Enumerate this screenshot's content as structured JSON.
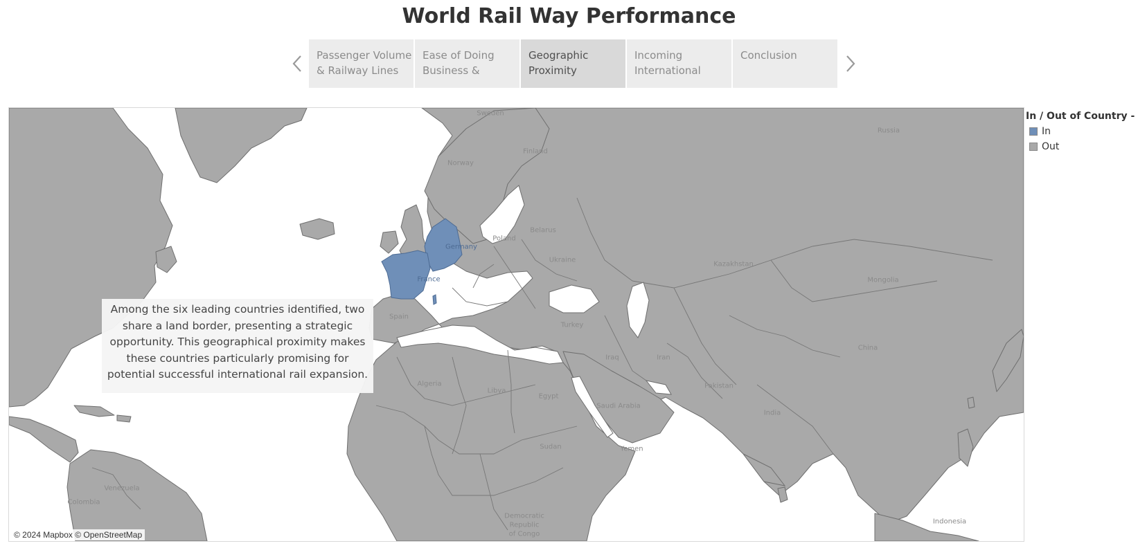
{
  "title": "World Rail Way Performance",
  "story": {
    "prev_icon": "chevron-left-icon",
    "next_icon": "chevron-right-icon",
    "points": [
      {
        "line1": "Passenger Volume",
        "line2": "& Railway Lines"
      },
      {
        "line1": "Ease of Doing",
        "line2": "Business &"
      },
      {
        "line1": "Geographic",
        "line2": "Proximity"
      },
      {
        "line1": "Incoming",
        "line2": "International"
      },
      {
        "line1": "Conclusion",
        "line2": ""
      }
    ],
    "active_index": 2
  },
  "map": {
    "colors": {
      "in": "#6f8fb8",
      "out": "#a9a9a9",
      "water": "#ffffff"
    },
    "labels": {
      "sweden": "Sweden",
      "finland": "Finland",
      "norway": "Norway",
      "russia": "Russia",
      "poland": "Poland",
      "belarus": "Belarus",
      "ukraine": "Ukraine",
      "germany": "Germany",
      "france": "France",
      "spain": "Spain",
      "turkey": "Turkey",
      "kazakhstan": "Kazakhstan",
      "mongolia": "Mongolia",
      "china": "China",
      "iran": "Iran",
      "iraq": "Iraq",
      "pakistan": "Pakistan",
      "india": "India",
      "saudi_arabia": "Saudi Arabia",
      "egypt": "Egypt",
      "libya": "Libya",
      "algeria": "Algeria",
      "sudan": "Sudan",
      "yemen": "Yemen",
      "venezuela": "Venezuela",
      "colombia": "Colombia",
      "drc_1": "Democratic",
      "drc_2": "Republic",
      "drc_3": "of Congo",
      "indonesia": "Indonesia"
    },
    "highlighted_countries": [
      "Germany",
      "France"
    ],
    "annotation": "Among the six leading countries identified, two share a land border, presenting a strategic opportunity. This geographical proximity makes these countries particularly promising for potential successful international rail expansion.",
    "attribution": "© 2024 Mapbox © OpenStreetMap"
  },
  "legend": {
    "title": "In / Out of Country - ..",
    "items": [
      {
        "label": "In",
        "color": "#6f8fb8"
      },
      {
        "label": "Out",
        "color": "#a9a9a9"
      }
    ]
  }
}
